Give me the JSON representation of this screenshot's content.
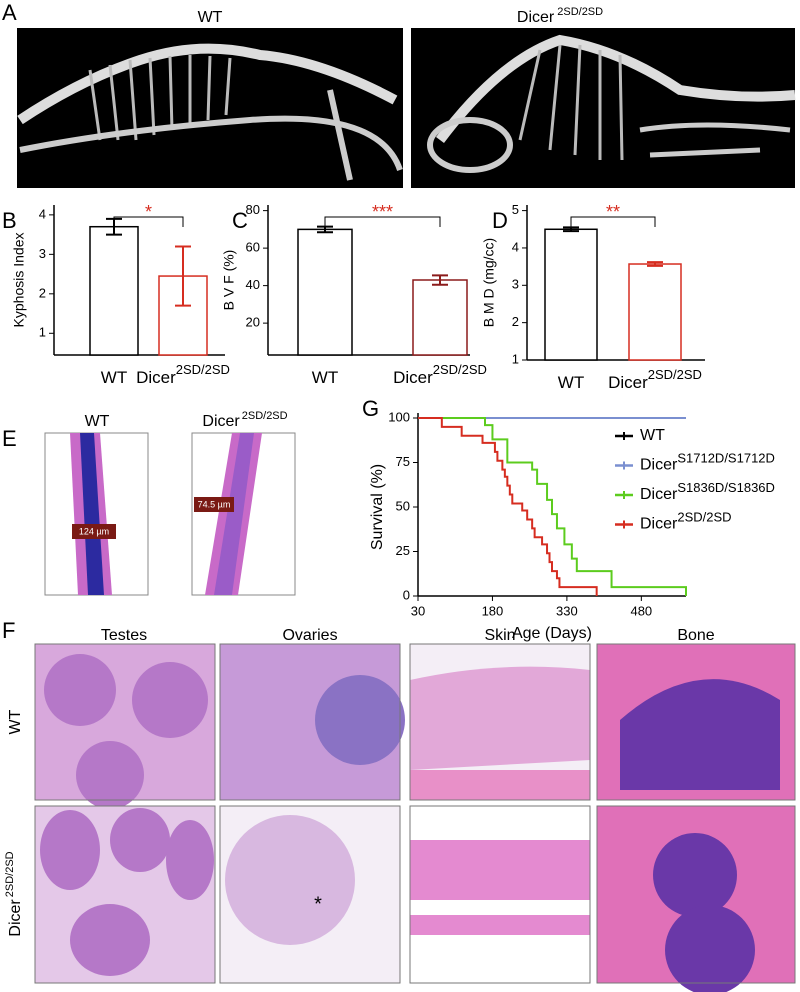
{
  "panel_a": {
    "letter": "A",
    "left_label": "WT",
    "right_label": "Dicer",
    "right_label_sup": "2SD/2SD"
  },
  "panel_e": {
    "letter": "E",
    "left_label": "WT",
    "right_label": "Dicer",
    "right_label_sup": "2SD/2SD",
    "left_measure": "124 µm",
    "right_measure": "74.5 µm"
  },
  "panel_f": {
    "letter": "F",
    "columns": [
      "Testes",
      "Ovaries",
      "Skin",
      "Bone"
    ],
    "rows": [
      {
        "label": "WT"
      },
      {
        "label": "Dicer",
        "sup": "2SD/2SD"
      }
    ]
  },
  "chart_data": [
    {
      "type": "bar",
      "panel": "B",
      "ylabel": "Kyphosis Index",
      "categories": [
        "WT",
        "Dicer"
      ],
      "category_superscripts": [
        null,
        "2SD/2SD"
      ],
      "values": [
        3.7,
        2.45
      ],
      "errors": [
        0.2,
        0.75
      ],
      "colors": [
        "#000000",
        "#d62d20"
      ],
      "significance": "*",
      "ylim": [
        0.45,
        4.25
      ],
      "yticks": [
        1,
        2,
        3,
        4
      ]
    },
    {
      "type": "bar",
      "panel": "C",
      "ylabel": "B V F (%)",
      "categories": [
        "WT",
        "Dicer"
      ],
      "category_superscripts": [
        null,
        "2SD/2SD"
      ],
      "values": [
        70,
        43
      ],
      "errors": [
        1.5,
        2.5
      ],
      "colors": [
        "#000000",
        "#8b1a1a"
      ],
      "significance": "***",
      "ylim": [
        3,
        83
      ],
      "yticks": [
        20,
        40,
        60,
        80
      ]
    },
    {
      "type": "bar",
      "panel": "D",
      "ylabel": "B M D (mg/cc)",
      "categories": [
        "WT",
        "Dicer"
      ],
      "category_superscripts": [
        null,
        "2SD/2SD"
      ],
      "values": [
        4.5,
        3.57
      ],
      "errors": [
        0.05,
        0.05
      ],
      "colors": [
        "#000000",
        "#d62d20"
      ],
      "significance": "**",
      "ylim": [
        1,
        5.15
      ],
      "yticks": [
        1,
        2,
        3,
        4,
        5
      ]
    },
    {
      "type": "line",
      "panel": "G",
      "xlabel": "Age (Days)",
      "ylabel": "Survival (%)",
      "xlim": [
        30,
        570
      ],
      "xticks": [
        30,
        180,
        330,
        480
      ],
      "ylim": [
        0,
        100
      ],
      "yticks": [
        0,
        25,
        50,
        75,
        100
      ],
      "series": [
        {
          "name": "WT",
          "color": "#000000",
          "x": [
            30,
            570
          ],
          "values": [
            100,
            100
          ]
        },
        {
          "name": "Dicer",
          "name_sup": "S1712D/S1712D",
          "color": "#7a8fd0",
          "x": [
            30,
            570
          ],
          "values": [
            100,
            100
          ]
        },
        {
          "name": "Dicer",
          "name_sup": "S1836D/S1836D",
          "color": "#5ccc1e",
          "x": [
            30,
            165,
            165,
            180,
            180,
            210,
            210,
            260,
            260,
            270,
            270,
            290,
            290,
            300,
            300,
            310,
            310,
            325,
            325,
            340,
            340,
            350,
            350,
            420,
            420,
            570,
            570
          ],
          "values": [
            100,
            100,
            96,
            96,
            88,
            88,
            75,
            75,
            71,
            71,
            63,
            63,
            54,
            54,
            46,
            46,
            38,
            38,
            29,
            29,
            21,
            21,
            14,
            14,
            5,
            5,
            0
          ]
        },
        {
          "name": "Dicer",
          "name_sup": "2SD/2SD",
          "color": "#d62d20",
          "x": [
            30,
            78,
            78,
            118,
            118,
            160,
            160,
            185,
            185,
            190,
            190,
            200,
            200,
            205,
            205,
            210,
            210,
            215,
            215,
            220,
            220,
            240,
            240,
            250,
            250,
            260,
            260,
            265,
            265,
            280,
            280,
            290,
            290,
            295,
            295,
            300,
            300,
            310,
            310,
            315,
            315,
            390,
            390
          ],
          "values": [
            100,
            100,
            95,
            95,
            90,
            90,
            86,
            86,
            81,
            81,
            76,
            76,
            71,
            71,
            67,
            67,
            62,
            62,
            57,
            57,
            52,
            52,
            48,
            48,
            43,
            43,
            38,
            38,
            33,
            33,
            29,
            29,
            24,
            24,
            19,
            19,
            14,
            14,
            10,
            10,
            5,
            5,
            0
          ]
        }
      ]
    }
  ]
}
